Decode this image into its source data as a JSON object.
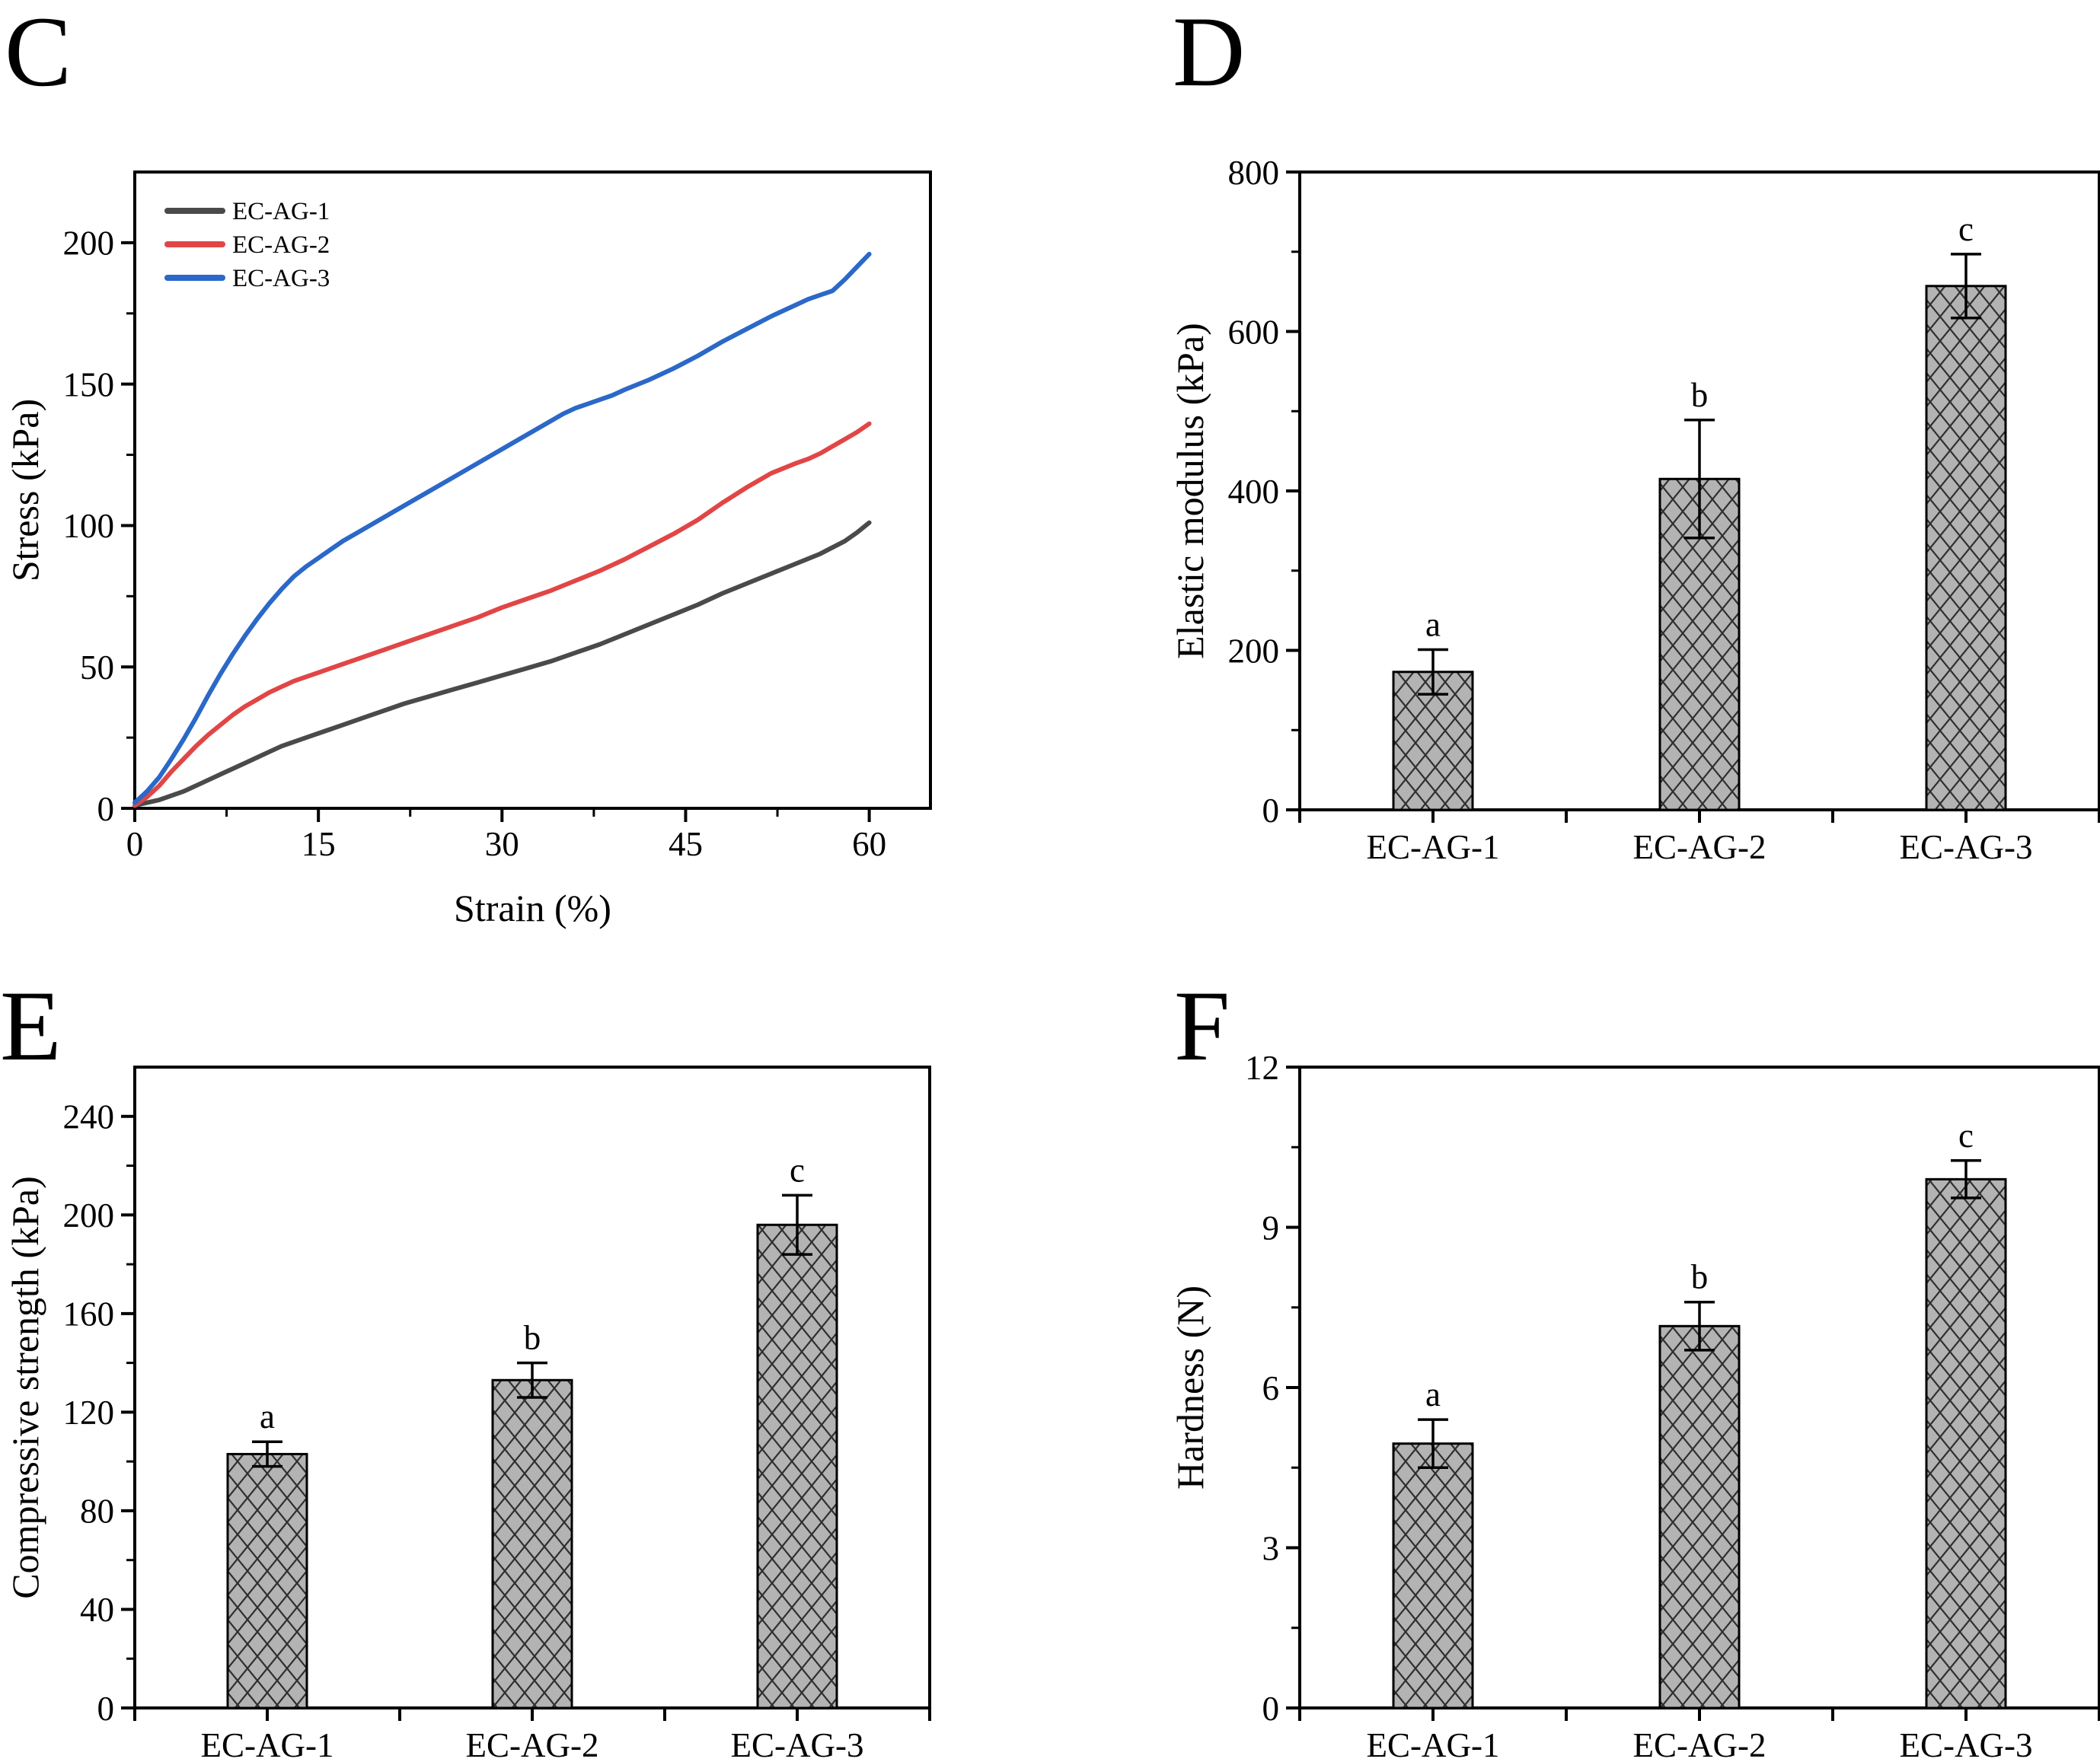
{
  "figure": {
    "background": "#ffffff",
    "axis_color": "#000000"
  },
  "chart_data": [
    {
      "panel_letter": "C",
      "type": "line",
      "title": "",
      "xlabel": "Strain (%)",
      "ylabel": "Stress (kPa)",
      "xlim": [
        0,
        65
      ],
      "ylim": [
        0,
        225
      ],
      "xticks": [
        0,
        15,
        30,
        45,
        60
      ],
      "yticks": [
        0,
        50,
        100,
        150,
        200
      ],
      "x_minor_ticks": [
        7.5,
        22.5,
        37.5,
        52.5
      ],
      "y_minor_ticks": [
        25,
        75,
        125,
        175
      ],
      "grid": false,
      "legend_position": "top-left",
      "series": [
        {
          "name": "EC-AG-1",
          "color": "#4a4a4a",
          "points": [
            [
              0,
              1
            ],
            [
              1,
              2
            ],
            [
              2,
              3
            ],
            [
              3,
              4.5
            ],
            [
              4,
              6
            ],
            [
              5,
              8
            ],
            [
              6,
              10
            ],
            [
              7,
              12
            ],
            [
              8,
              14
            ],
            [
              9,
              16
            ],
            [
              10,
              18
            ],
            [
              11,
              20
            ],
            [
              12,
              22
            ],
            [
              13,
              23.5
            ],
            [
              14,
              25
            ],
            [
              15,
              26.5
            ],
            [
              16,
              28
            ],
            [
              17,
              29.5
            ],
            [
              18,
              31
            ],
            [
              19,
              32.5
            ],
            [
              20,
              34
            ],
            [
              22,
              37
            ],
            [
              24,
              39.5
            ],
            [
              26,
              42
            ],
            [
              28,
              44.5
            ],
            [
              30,
              47
            ],
            [
              32,
              49.5
            ],
            [
              34,
              52
            ],
            [
              36,
              55
            ],
            [
              38,
              58
            ],
            [
              40,
              61.5
            ],
            [
              42,
              65
            ],
            [
              44,
              68.5
            ],
            [
              46,
              72
            ],
            [
              48,
              76
            ],
            [
              50,
              79.5
            ],
            [
              52,
              83
            ],
            [
              54,
              86.5
            ],
            [
              56,
              90
            ],
            [
              58,
              94.5
            ],
            [
              59,
              97.5
            ],
            [
              60,
              101
            ]
          ]
        },
        {
          "name": "EC-AG-2",
          "color": "#e14646",
          "points": [
            [
              0,
              1
            ],
            [
              1,
              4
            ],
            [
              2,
              8
            ],
            [
              3,
              13
            ],
            [
              4,
              17.5
            ],
            [
              5,
              22
            ],
            [
              6,
              26
            ],
            [
              7,
              29.5
            ],
            [
              8,
              33
            ],
            [
              9,
              36
            ],
            [
              10,
              38.5
            ],
            [
              11,
              41
            ],
            [
              12,
              43
            ],
            [
              13,
              45
            ],
            [
              14,
              46.5
            ],
            [
              15,
              48
            ],
            [
              16,
              49.5
            ],
            [
              17,
              51
            ],
            [
              18,
              52.5
            ],
            [
              19,
              54
            ],
            [
              20,
              55.5
            ],
            [
              22,
              58.5
            ],
            [
              24,
              61.5
            ],
            [
              26,
              64.5
            ],
            [
              28,
              67.5
            ],
            [
              30,
              71
            ],
            [
              32,
              74
            ],
            [
              34,
              77
            ],
            [
              36,
              80.5
            ],
            [
              38,
              84
            ],
            [
              40,
              88
            ],
            [
              42,
              92.5
            ],
            [
              44,
              97
            ],
            [
              46,
              102
            ],
            [
              48,
              108
            ],
            [
              50,
              113.5
            ],
            [
              52,
              118.5
            ],
            [
              54,
              122
            ],
            [
              55,
              123.5
            ],
            [
              56,
              125.5
            ],
            [
              57,
              128
            ],
            [
              58,
              130.5
            ],
            [
              59,
              133
            ],
            [
              60,
              136
            ]
          ]
        },
        {
          "name": "EC-AG-3",
          "color": "#2b68c8",
          "points": [
            [
              0,
              2
            ],
            [
              1,
              6
            ],
            [
              2,
              11
            ],
            [
              3,
              17.5
            ],
            [
              4,
              24.5
            ],
            [
              5,
              32
            ],
            [
              6,
              40
            ],
            [
              7,
              47.5
            ],
            [
              8,
              54.5
            ],
            [
              9,
              61
            ],
            [
              10,
              67
            ],
            [
              11,
              72.5
            ],
            [
              12,
              77.5
            ],
            [
              13,
              82
            ],
            [
              14,
              85.5
            ],
            [
              15,
              88.5
            ],
            [
              16,
              91.5
            ],
            [
              17,
              94.5
            ],
            [
              18,
              97
            ],
            [
              19,
              99.5
            ],
            [
              20,
              102
            ],
            [
              22,
              107
            ],
            [
              24,
              112
            ],
            [
              26,
              117
            ],
            [
              28,
              122
            ],
            [
              30,
              127
            ],
            [
              32,
              132
            ],
            [
              34,
              137
            ],
            [
              35,
              139.5
            ],
            [
              36,
              141.5
            ],
            [
              37,
              143
            ],
            [
              38,
              144.5
            ],
            [
              39,
              146
            ],
            [
              40,
              148
            ],
            [
              42,
              151.5
            ],
            [
              44,
              155.5
            ],
            [
              46,
              160
            ],
            [
              48,
              165
            ],
            [
              50,
              169.5
            ],
            [
              52,
              174
            ],
            [
              54,
              178
            ],
            [
              55,
              180
            ],
            [
              56,
              181.5
            ],
            [
              57,
              183
            ],
            [
              58,
              187
            ],
            [
              59,
              191.5
            ],
            [
              60,
              196
            ]
          ]
        }
      ]
    },
    {
      "panel_letter": "D",
      "type": "bar",
      "title": "",
      "xlabel": "",
      "ylabel": "Elastic modulus (kPa)",
      "categories": [
        "EC-AG-1",
        "EC-AG-2",
        "EC-AG-3"
      ],
      "values": [
        173,
        415,
        657
      ],
      "errors": [
        28,
        74,
        40
      ],
      "sig_labels": [
        "a",
        "b",
        "c"
      ],
      "ylim": [
        0,
        800
      ],
      "yticks": [
        0,
        200,
        400,
        600,
        800
      ],
      "y_minor_ticks": [
        100,
        300,
        500,
        700
      ],
      "grid": false,
      "bar_fill": "#b3b3b3",
      "hatch": "diagonal-crosshatch",
      "hatch_color": "#2f2f2f",
      "bar_border": "#000000"
    },
    {
      "panel_letter": "E",
      "type": "bar",
      "title": "",
      "xlabel": "",
      "ylabel": "Compressive strength (kPa)",
      "categories": [
        "EC-AG-1",
        "EC-AG-2",
        "EC-AG-3"
      ],
      "values": [
        103,
        133,
        196
      ],
      "errors": [
        5,
        7,
        12
      ],
      "sig_labels": [
        "a",
        "b",
        "c"
      ],
      "ylim": [
        0,
        260
      ],
      "yticks": [
        0,
        40,
        80,
        120,
        160,
        200,
        240
      ],
      "y_minor_ticks": [
        20,
        60,
        100,
        140,
        180,
        220
      ],
      "grid": false,
      "bar_fill": "#b3b3b3",
      "hatch": "diagonal-crosshatch",
      "hatch_color": "#2f2f2f",
      "bar_border": "#000000"
    },
    {
      "panel_letter": "F",
      "type": "bar",
      "title": "",
      "xlabel": "",
      "ylabel": "Hardness (N)",
      "categories": [
        "EC-AG-1",
        "EC-AG-2",
        "EC-AG-3"
      ],
      "values": [
        4.95,
        7.15,
        9.9
      ],
      "errors": [
        0.45,
        0.45,
        0.35
      ],
      "sig_labels": [
        "a",
        "b",
        "c"
      ],
      "ylim": [
        0,
        12
      ],
      "yticks": [
        0,
        3,
        6,
        9,
        12
      ],
      "y_minor_ticks": [
        1.5,
        4.5,
        7.5,
        10.5
      ],
      "grid": false,
      "bar_fill": "#b3b3b3",
      "hatch": "diagonal-crosshatch",
      "hatch_color": "#2f2f2f",
      "bar_border": "#000000"
    }
  ]
}
